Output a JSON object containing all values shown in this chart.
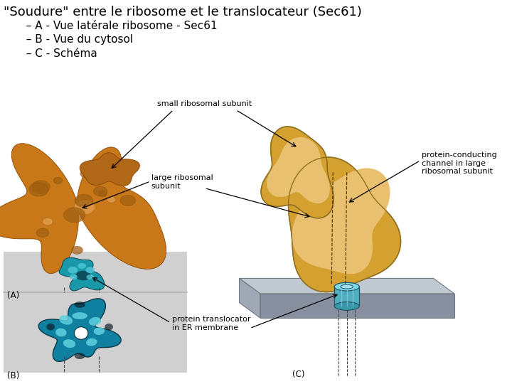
{
  "title_line1": "\"Soudure\" entre le ribosome et le translocateur (Sec61)",
  "title_line2": "  – A - Vue latérale ribosome - Sec61",
  "title_line3": "  – B - Vue du cytosol",
  "title_line4": "  – C - Schéma",
  "bg_color": "#ffffff",
  "panel_bg": "#d0d0d0",
  "title_fontsize": 13,
  "subtitle_fontsize": 11,
  "label_fontsize": 8,
  "annotations": {
    "small_ribosomal_subunit": "small ribosomal subunit",
    "large_ribosomal_subunit": "large ribosomal\nsubunit",
    "protein_conducting": "protein-conducting\nchannel in large\nribosomal subunit",
    "protein_translocator": "protein translocator\nin ER membrane",
    "label_A": "(A)",
    "label_B": "(B)",
    "label_C": "(C)"
  },
  "colors": {
    "ribosome_orange": "#c87818",
    "ribosome_dark": "#8b4500",
    "ribosome_light": "#e0a050",
    "schematic_orange": "#d4a030",
    "schematic_light": "#e8c070",
    "translocator_teal": "#40b8c8",
    "translocator_dark": "#205868",
    "translocator_light": "#80d8e8",
    "membrane_top": "#c0c8d0",
    "membrane_front": "#8890a0",
    "membrane_left": "#a0a8b8",
    "panel_divider": "#b0b0b0",
    "arrow_color": "#000000",
    "dashed_line": "#404040"
  }
}
